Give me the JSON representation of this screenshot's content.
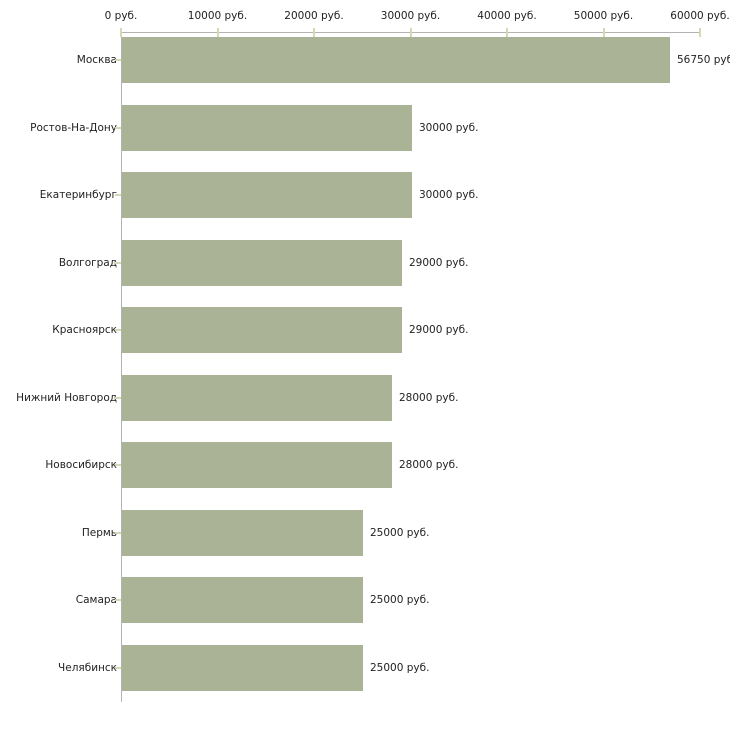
{
  "chart_data": {
    "type": "bar",
    "orientation": "horizontal",
    "title": "",
    "xlabel": "",
    "ylabel": "",
    "unit": "руб.",
    "xlim": [
      0,
      60000
    ],
    "grid": false,
    "legend": "none",
    "axis_position": "top",
    "x_axis_ticks": [
      {
        "value": 0,
        "label": "0 руб."
      },
      {
        "value": 10000,
        "label": "10000 руб."
      },
      {
        "value": 20000,
        "label": "20000 руб."
      },
      {
        "value": 30000,
        "label": "30000 руб."
      },
      {
        "value": 40000,
        "label": "40000 руб."
      },
      {
        "value": 50000,
        "label": "50000 руб."
      },
      {
        "value": 60000,
        "label": "60000 руб."
      }
    ],
    "categories": [
      "Москва",
      "Ростов-На-Дону",
      "Екатеринбург",
      "Волгоград",
      "Красноярск",
      "Нижний Новгород",
      "Новосибирск",
      "Пермь",
      "Самара",
      "Челябинск"
    ],
    "values": [
      56750,
      30000,
      30000,
      29000,
      29000,
      28000,
      28000,
      25000,
      25000,
      25000
    ],
    "rows": [
      {
        "category": "Москва",
        "value": 56750,
        "value_label": "56750 руб"
      },
      {
        "category": "Ростов-На-Дону",
        "value": 30000,
        "value_label": "30000 руб."
      },
      {
        "category": "Екатеринбург",
        "value": 30000,
        "value_label": "30000 руб."
      },
      {
        "category": "Волгоград",
        "value": 29000,
        "value_label": "29000 руб."
      },
      {
        "category": "Красноярск",
        "value": 29000,
        "value_label": "29000 руб."
      },
      {
        "category": "Нижний Новгород",
        "value": 28000,
        "value_label": "28000 руб."
      },
      {
        "category": "Новосибирск",
        "value": 28000,
        "value_label": "28000 руб."
      },
      {
        "category": "Пермь",
        "value": 25000,
        "value_label": "25000 руб."
      },
      {
        "category": "Самара",
        "value": 25000,
        "value_label": "25000 руб."
      },
      {
        "category": "Челябинск",
        "value": 25000,
        "value_label": "25000 руб."
      }
    ],
    "colors": {
      "bar_fill": "#abb397",
      "axis_line": "#b3b3b3",
      "tick_mark": "#d6d8b0",
      "text": "#222222",
      "background": "#ffffff"
    }
  }
}
